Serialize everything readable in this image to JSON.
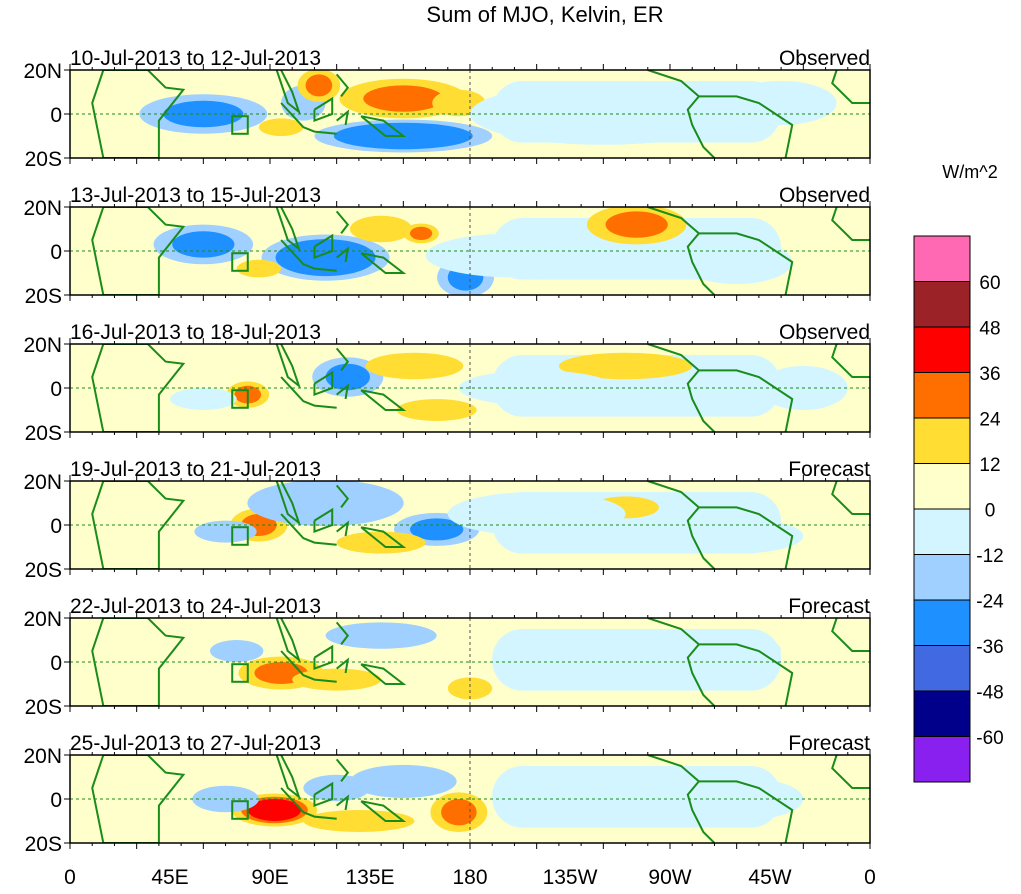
{
  "title": "Sum of MJO, Kelvin, ER",
  "units": "W/m^2",
  "lat_labels": [
    "20N",
    "0",
    "20S"
  ],
  "lon_labels": [
    "0",
    "45E",
    "90E",
    "135E",
    "180",
    "135W",
    "90W",
    "45W",
    "0"
  ],
  "colorbar": {
    "labels": [
      "60",
      "48",
      "36",
      "24",
      "12",
      "0",
      "-12",
      "-24",
      "-36",
      "-48",
      "-60"
    ],
    "colors": [
      "#ff69b4",
      "#9b2226",
      "#ff0000",
      "#ff6f00",
      "#ffdd33",
      "#ffffcc",
      "#d2f5ff",
      "#9fd0ff",
      "#1e90ff",
      "#4169e1",
      "#00008b",
      "#8a20f0"
    ]
  },
  "panels": [
    {
      "dates": "10-Jul-2013 to 12-Jul-2013",
      "type": "Observed",
      "features": [
        [
          60,
          0,
          18,
          6,
          -30
        ],
        [
          105,
          5,
          10,
          8,
          -18
        ],
        [
          150,
          -10,
          25,
          5,
          -36
        ],
        [
          112,
          13,
          6,
          5,
          30
        ],
        [
          150,
          7,
          18,
          6,
          30
        ],
        [
          175,
          5,
          12,
          6,
          12
        ],
        [
          95,
          -6,
          10,
          4,
          18
        ],
        [
          240,
          0,
          60,
          14,
          -6
        ],
        [
          320,
          5,
          25,
          10,
          -6
        ]
      ]
    },
    {
      "dates": "13-Jul-2013 to 15-Jul-2013",
      "type": "Observed",
      "features": [
        [
          60,
          3,
          14,
          6,
          -30
        ],
        [
          115,
          -3,
          18,
          7,
          -36
        ],
        [
          178,
          -12,
          8,
          6,
          -30
        ],
        [
          140,
          10,
          14,
          6,
          18
        ],
        [
          158,
          8,
          5,
          3,
          30
        ],
        [
          255,
          12,
          14,
          6,
          30
        ],
        [
          85,
          -8,
          10,
          4,
          15
        ],
        [
          200,
          -2,
          40,
          10,
          -6
        ],
        [
          300,
          -5,
          25,
          10,
          -6
        ]
      ]
    },
    {
      "dates": "16-Jul-2013 to 18-Jul-2013",
      "type": "Observed",
      "features": [
        [
          80,
          -3,
          6,
          4,
          30
        ],
        [
          125,
          5,
          10,
          6,
          -30
        ],
        [
          155,
          10,
          22,
          6,
          18
        ],
        [
          165,
          -10,
          18,
          5,
          18
        ],
        [
          250,
          10,
          30,
          6,
          12
        ],
        [
          210,
          0,
          35,
          8,
          -12
        ],
        [
          60,
          -5,
          15,
          5,
          -12
        ],
        [
          330,
          0,
          20,
          10,
          -6
        ]
      ]
    },
    {
      "dates": "19-Jul-2013 to 21-Jul-2013",
      "type": "Forecast",
      "features": [
        [
          85,
          0,
          8,
          5,
          30
        ],
        [
          115,
          10,
          22,
          7,
          -24
        ],
        [
          165,
          -2,
          12,
          5,
          -30
        ],
        [
          70,
          -3,
          14,
          5,
          -18
        ],
        [
          250,
          8,
          15,
          5,
          18
        ],
        [
          140,
          -8,
          20,
          5,
          15
        ],
        [
          210,
          5,
          40,
          10,
          -6
        ],
        [
          300,
          -5,
          30,
          8,
          -12
        ]
      ]
    },
    {
      "dates": "22-Jul-2013 to 24-Jul-2013",
      "type": "Forecast",
      "features": [
        [
          95,
          -5,
          12,
          5,
          30
        ],
        [
          140,
          12,
          25,
          6,
          -18
        ],
        [
          75,
          5,
          12,
          5,
          -18
        ],
        [
          180,
          -12,
          10,
          5,
          18
        ],
        [
          240,
          0,
          40,
          10,
          -6
        ],
        [
          300,
          5,
          20,
          8,
          -12
        ],
        [
          120,
          -8,
          20,
          5,
          12
        ]
      ]
    },
    {
      "dates": "25-Jul-2013 to 27-Jul-2013",
      "type": "Forecast",
      "features": [
        [
          92,
          -5,
          12,
          5,
          36
        ],
        [
          175,
          -6,
          8,
          6,
          30
        ],
        [
          150,
          8,
          15,
          5,
          -24
        ],
        [
          70,
          0,
          15,
          6,
          -18
        ],
        [
          120,
          5,
          15,
          6,
          -18
        ],
        [
          230,
          3,
          40,
          10,
          -6
        ],
        [
          300,
          0,
          30,
          10,
          -6
        ],
        [
          130,
          -10,
          25,
          5,
          12
        ]
      ]
    }
  ]
}
